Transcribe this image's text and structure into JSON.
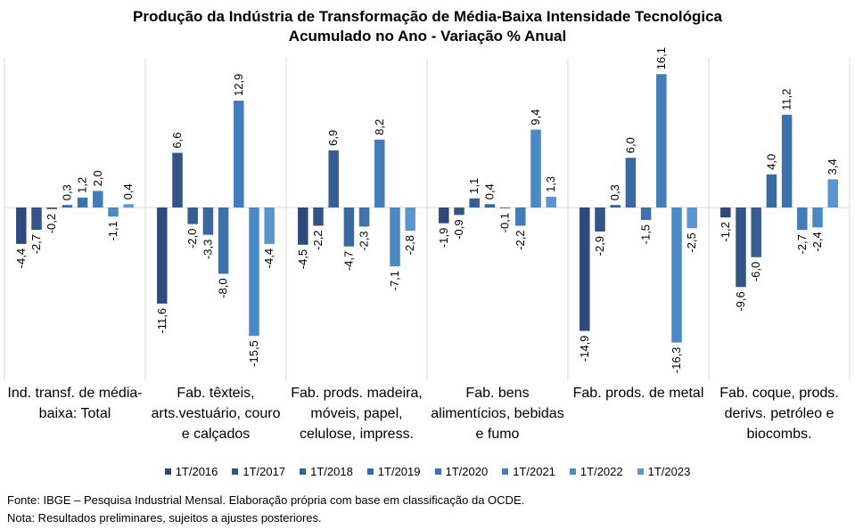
{
  "chart_data": {
    "type": "bar",
    "title": "Produção da Indústria de Transformação de Média-Baixa Intensidade Tecnológica",
    "subtitle": "Acumulado no Ano - Variação % Anual",
    "categories": [
      "Ind. transf. de média-baixa: Total",
      "Fab. têxteis, arts.vestuário, couro e calçados",
      "Fab. prods. madeira, móveis, papel, celulose, impress.",
      "Fab. bens alimentícios, bebidas e fumo",
      "Fab. prods. de metal",
      "Fab. coque, prods. derivs. petróleo e biocombs."
    ],
    "series": [
      {
        "name": "1T/2016",
        "color": "#2e4a7c",
        "values": [
          -4.4,
          -11.6,
          -4.5,
          -1.9,
          -14.9,
          -1.2
        ],
        "labels": [
          "-4,4",
          "-11,6",
          "-4,5",
          "-1,9",
          "-14,9",
          "-1,2"
        ]
      },
      {
        "name": "1T/2017",
        "color": "#325487",
        "values": [
          -2.7,
          6.6,
          -2.2,
          -0.9,
          -2.9,
          -9.6
        ],
        "labels": [
          "-2,7",
          "6,6",
          "-2,2",
          "-0,9",
          "-2,9",
          "-9,6"
        ]
      },
      {
        "name": "1T/2018",
        "color": "#365e93",
        "values": [
          -0.2,
          -2.0,
          6.9,
          1.1,
          0.3,
          -6.0
        ],
        "labels": [
          "-0,2",
          "-2,0",
          "6,9",
          "1,1",
          "0,3",
          "-6,0"
        ]
      },
      {
        "name": "1T/2019",
        "color": "#3a689f",
        "values": [
          0.3,
          -3.3,
          -4.7,
          0.4,
          6.0,
          4.0
        ],
        "labels": [
          "0,3",
          "-3,3",
          "-4,7",
          "0,4",
          "6,0",
          "4,0"
        ]
      },
      {
        "name": "1T/2020",
        "color": "#3e72ad",
        "values": [
          1.2,
          -8.0,
          -2.3,
          -0.1,
          -1.5,
          11.2
        ],
        "labels": [
          "1,2",
          "-8,0",
          "-2,3",
          "-0,1",
          "-1,5",
          "11,2"
        ]
      },
      {
        "name": "1T/2021",
        "color": "#437db9",
        "values": [
          2.0,
          12.9,
          8.2,
          -2.2,
          16.1,
          -2.7
        ],
        "labels": [
          "2,0",
          "12,9",
          "8,2",
          "-2,2",
          "16,1",
          "-2,7"
        ]
      },
      {
        "name": "1T/2022",
        "color": "#4a88c6",
        "values": [
          -1.1,
          -15.5,
          -7.1,
          9.4,
          -16.3,
          -2.4
        ],
        "labels": [
          "-1,1",
          "-15,5",
          "-7,1",
          "9,4",
          "-16,3",
          "-2,4"
        ]
      },
      {
        "name": "1T/2023",
        "color": "#5b95cf",
        "values": [
          0.4,
          -4.4,
          -2.8,
          1.3,
          -2.5,
          3.4
        ],
        "labels": [
          "0,4",
          "-4,4",
          "-2,8",
          "1,3",
          "-2,5",
          "3,4"
        ]
      }
    ],
    "ylim": [
      -18,
      17.5
    ],
    "xlabel": "",
    "ylabel": "",
    "grid": false,
    "legend_position": "bottom",
    "axis_color": "#d9d9d9"
  },
  "footer": {
    "source": "Fonte: IBGE – Pesquisa Industrial Mensal. Elaboração própria com base em classificação da OCDE.",
    "note": "Nota: Resultados preliminares, sujeitos a ajustes posteriores."
  }
}
